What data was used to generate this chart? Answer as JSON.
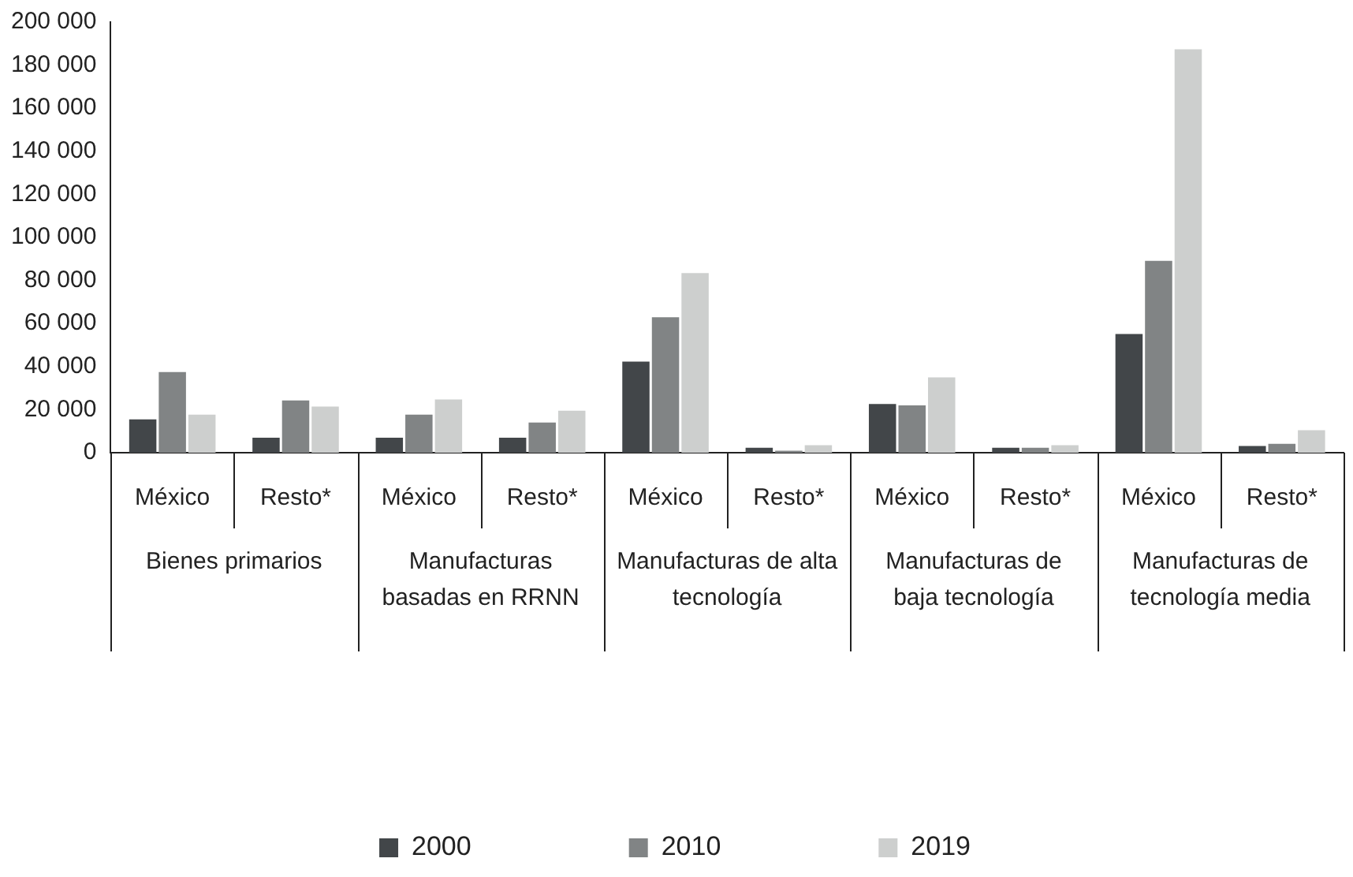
{
  "chart_data": {
    "type": "bar",
    "categories": [
      "México",
      "Resto*",
      "México",
      "Resto*",
      "México",
      "Resto*",
      "México",
      "Resto*",
      "México",
      "Resto*"
    ],
    "annotations": [
      "Bienes primarios",
      "Manufacturas basadas en RRNN",
      "Manufacturas de alta tecnología",
      "Manufacturas de baja tecnología",
      "Manufacturas de tecnología media"
    ],
    "series": [
      {
        "name": "2000",
        "color": "#424649",
        "values": [
          15500,
          7000,
          7000,
          7000,
          42300,
          2300,
          22600,
          2300,
          55100,
          3100
        ]
      },
      {
        "name": "2010",
        "color": "#818485",
        "values": [
          37500,
          24300,
          17700,
          14000,
          62900,
          900,
          22000,
          2300,
          89100,
          4100
        ]
      },
      {
        "name": "2019",
        "color": "#cdcfce",
        "values": [
          17700,
          21400,
          24700,
          19500,
          83400,
          3500,
          35000,
          3500,
          187400,
          10400
        ]
      }
    ],
    "ylim": [
      0,
      200000
    ],
    "yticks": [
      0,
      20000,
      40000,
      60000,
      80000,
      100000,
      120000,
      140000,
      160000,
      180000,
      200000
    ],
    "grid": false,
    "legend": "bottom"
  }
}
